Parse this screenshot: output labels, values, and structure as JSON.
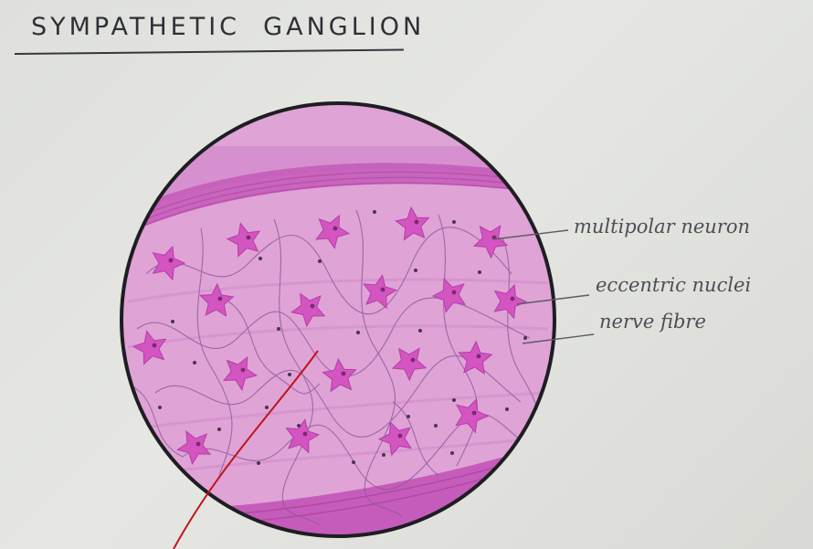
{
  "title": "SYMPATHETIC  GANGLION",
  "labels": {
    "multipolar_neuron": "multipolar neuron",
    "eccentric_nuclei": "eccentric nuclei",
    "nerve_fibre": "nerve fibre"
  },
  "colors": {
    "tissue": "#e2a6d9",
    "capsule": "#c75cbd",
    "neuron": "#d454c2",
    "nucleus": "#7a2a6e",
    "fibre": "#8e5a9a",
    "outline": "#1e1e22",
    "pointer": "#c0141a"
  }
}
